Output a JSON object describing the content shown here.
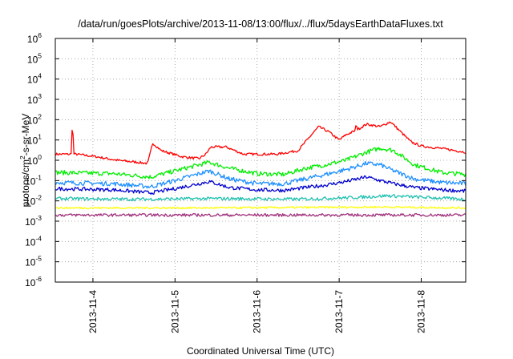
{
  "chart_data": {
    "type": "line",
    "title": "/data/run/goesPlots/archive/2013-11-08/13:00/flux/../flux/5daysEarthDataFluxes.txt",
    "xlabel": "Coordinated Universal Time (UTC)",
    "ylabel": {
      "pre": "protons/cm",
      "sup": "2",
      "post": "-s-sr-MeV"
    },
    "y_scale": "log",
    "ylim": [
      1e-06,
      1000000.0
    ],
    "y_ticks": [
      {
        "value": 1e-06,
        "base": "10",
        "exp": "-6"
      },
      {
        "value": 1e-05,
        "base": "10",
        "exp": "-5"
      },
      {
        "value": 0.0001,
        "base": "10",
        "exp": "-4"
      },
      {
        "value": 0.001,
        "base": "10",
        "exp": "-3"
      },
      {
        "value": 0.01,
        "base": "10",
        "exp": "-2"
      },
      {
        "value": 0.1,
        "base": "10",
        "exp": "-1"
      },
      {
        "value": 1.0,
        "base": "10",
        "exp": "0"
      },
      {
        "value": 10.0,
        "base": "10",
        "exp": "1"
      },
      {
        "value": 100.0,
        "base": "10",
        "exp": "2"
      },
      {
        "value": 1000.0,
        "base": "10",
        "exp": "3"
      },
      {
        "value": 10000.0,
        "base": "10",
        "exp": "4"
      },
      {
        "value": 100000.0,
        "base": "10",
        "exp": "5"
      },
      {
        "value": 1000000.0,
        "base": "10",
        "exp": "6"
      }
    ],
    "x_range": [
      "2013-11-03T13:00",
      "2013-11-08T13:00"
    ],
    "x_ticks": [
      "2013-11-4",
      "2013-11-5",
      "2013-11-6",
      "2013-11-7",
      "2013-11-8"
    ],
    "grid": "dotted",
    "series": [
      {
        "color": "#ff0000",
        "x": [
          "2013-11-03T13:00",
          "2013-11-03T19:00",
          "2013-11-04T01:00",
          "2013-11-04T07:00",
          "2013-11-04T13:00",
          "2013-11-04T16:00",
          "2013-11-04T17:30",
          "2013-11-04T20:00",
          "2013-11-05T02:00",
          "2013-11-05T07:00",
          "2013-11-05T09:00",
          "2013-11-05T10:30",
          "2013-11-05T15:00",
          "2013-11-05T20:00",
          "2013-11-06T00:00",
          "2013-11-06T06:00",
          "2013-11-06T12:00",
          "2013-11-06T15:00",
          "2013-11-06T18:00",
          "2013-11-06T21:00",
          "2013-11-07T00:00",
          "2013-11-07T02:00",
          "2013-11-07T05:00",
          "2013-11-07T08:00",
          "2013-11-07T12:00",
          "2013-11-07T15:00",
          "2013-11-07T18:00",
          "2013-11-07T21:00",
          "2013-11-08T00:00",
          "2013-11-08T05:00",
          "2013-11-08T10:00",
          "2013-11-08T13:00"
        ],
        "y": [
          2,
          2,
          1.5,
          1,
          0.8,
          0.7,
          7,
          3,
          1.5,
          1.2,
          2,
          4.5,
          4.5,
          2,
          2,
          2,
          3,
          12,
          45,
          25,
          10,
          18,
          30,
          60,
          45,
          80,
          25,
          8,
          5,
          4,
          3,
          2.5
        ],
        "spikes": [
          {
            "x": "2013-11-03T18:00",
            "y": 55
          },
          {
            "x": "2013-11-07T05:00",
            "y": 110
          }
        ]
      },
      {
        "color": "#00ee00",
        "x": [
          "2013-11-03T13:00",
          "2013-11-04T06:00",
          "2013-11-04T17:00",
          "2013-11-05T00:00",
          "2013-11-05T10:00",
          "2013-11-05T16:00",
          "2013-11-06T00:00",
          "2013-11-06T08:00",
          "2013-11-06T14:00",
          "2013-11-06T20:00",
          "2013-11-07T02:00",
          "2013-11-07T08:00",
          "2013-11-07T12:00",
          "2013-11-07T16:00",
          "2013-11-07T22:00",
          "2013-11-08T06:00",
          "2013-11-08T13:00"
        ],
        "y": [
          0.25,
          0.22,
          0.15,
          0.3,
          0.8,
          0.4,
          0.22,
          0.2,
          0.4,
          0.6,
          1.0,
          2.5,
          4,
          3,
          0.6,
          0.25,
          0.2
        ]
      },
      {
        "color": "#1e90ff",
        "x": [
          "2013-11-03T13:00",
          "2013-11-04T06:00",
          "2013-11-04T17:00",
          "2013-11-05T00:00",
          "2013-11-05T10:00",
          "2013-11-05T16:00",
          "2013-11-06T00:00",
          "2013-11-06T08:00",
          "2013-11-06T14:00",
          "2013-11-06T20:00",
          "2013-11-07T02:00",
          "2013-11-07T08:00",
          "2013-11-07T12:00",
          "2013-11-07T16:00",
          "2013-11-07T22:00",
          "2013-11-08T06:00",
          "2013-11-08T13:00"
        ],
        "y": [
          0.08,
          0.07,
          0.05,
          0.1,
          0.3,
          0.12,
          0.07,
          0.07,
          0.12,
          0.2,
          0.35,
          0.7,
          0.6,
          0.3,
          0.12,
          0.08,
          0.07
        ]
      },
      {
        "color": "#0000cd",
        "x": [
          "2013-11-03T13:00",
          "2013-11-04T06:00",
          "2013-11-04T17:00",
          "2013-11-05T00:00",
          "2013-11-05T10:00",
          "2013-11-05T16:00",
          "2013-11-06T00:00",
          "2013-11-06T08:00",
          "2013-11-06T14:00",
          "2013-11-06T20:00",
          "2013-11-07T02:00",
          "2013-11-07T08:00",
          "2013-11-07T12:00",
          "2013-11-07T16:00",
          "2013-11-07T22:00",
          "2013-11-08T06:00",
          "2013-11-08T13:00"
        ],
        "y": [
          0.04,
          0.035,
          0.025,
          0.04,
          0.09,
          0.045,
          0.035,
          0.033,
          0.045,
          0.06,
          0.09,
          0.15,
          0.1,
          0.07,
          0.045,
          0.035,
          0.03
        ]
      },
      {
        "color": "#20c0b0",
        "x": [
          "2013-11-03T13:00",
          "2013-11-04T12:00",
          "2013-11-05T12:00",
          "2013-11-06T12:00",
          "2013-11-07T06:00",
          "2013-11-07T14:00",
          "2013-11-08T13:00"
        ],
        "y": [
          0.013,
          0.012,
          0.013,
          0.012,
          0.015,
          0.018,
          0.012
        ]
      },
      {
        "color": "#ffff00",
        "x": [
          "2013-11-03T13:00",
          "2013-11-05T12:00",
          "2013-11-07T12:00",
          "2013-11-08T13:00"
        ],
        "y": [
          0.0045,
          0.0045,
          0.005,
          0.0045
        ]
      },
      {
        "color": "#a0307a",
        "x": [
          "2013-11-03T13:00",
          "2013-11-05T12:00",
          "2013-11-07T12:00",
          "2013-11-08T13:00"
        ],
        "y": [
          0.002,
          0.002,
          0.002,
          0.002
        ]
      }
    ]
  }
}
